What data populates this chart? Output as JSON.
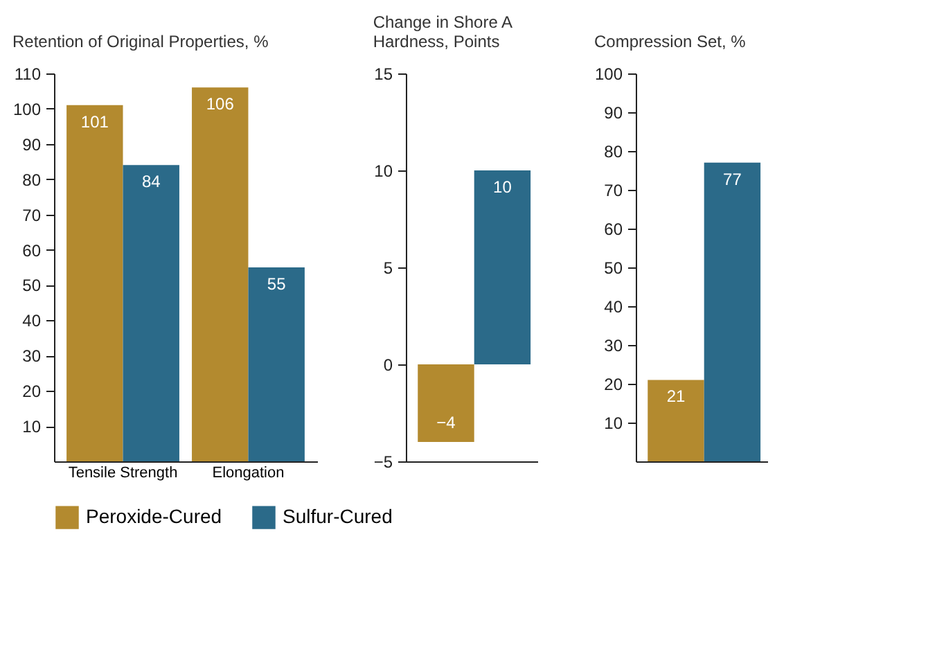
{
  "chart_data": [
    {
      "type": "bar",
      "title": "Retention of Original Properties, %",
      "categories": [
        "Tensile Strength",
        "Elongation"
      ],
      "series": [
        {
          "name": "Peroxide-Cured",
          "color": "#b38a2f",
          "values": [
            101,
            106
          ]
        },
        {
          "name": "Sulfur-Cured",
          "color": "#2b6a89",
          "values": [
            84,
            55
          ]
        }
      ],
      "ylim": [
        0,
        110
      ],
      "yticks": [
        10,
        20,
        30,
        40,
        50,
        60,
        70,
        80,
        90,
        100,
        110
      ],
      "data_labels": true,
      "legend": "bottom"
    },
    {
      "type": "bar",
      "title": "Change in Shore A Hardness, Points",
      "categories": [
        null
      ],
      "series": [
        {
          "name": "Peroxide-Cured",
          "color": "#b38a2f",
          "values": [
            -4
          ]
        },
        {
          "name": "Sulfur-Cured",
          "color": "#2b6a89",
          "values": [
            10
          ]
        }
      ],
      "ylim": [
        -5,
        15
      ],
      "yticks": [
        -5,
        0,
        5,
        10,
        15
      ],
      "data_labels": true
    },
    {
      "type": "bar",
      "title": "Compression Set, %",
      "categories": [
        null
      ],
      "series": [
        {
          "name": "Peroxide-Cured",
          "color": "#b38a2f",
          "values": [
            21
          ]
        },
        {
          "name": "Sulfur-Cured",
          "color": "#2b6a89",
          "values": [
            77
          ]
        }
      ],
      "ylim": [
        0,
        100
      ],
      "yticks": [
        10,
        20,
        30,
        40,
        50,
        60,
        70,
        80,
        90,
        100
      ],
      "data_labels": true
    }
  ]
}
